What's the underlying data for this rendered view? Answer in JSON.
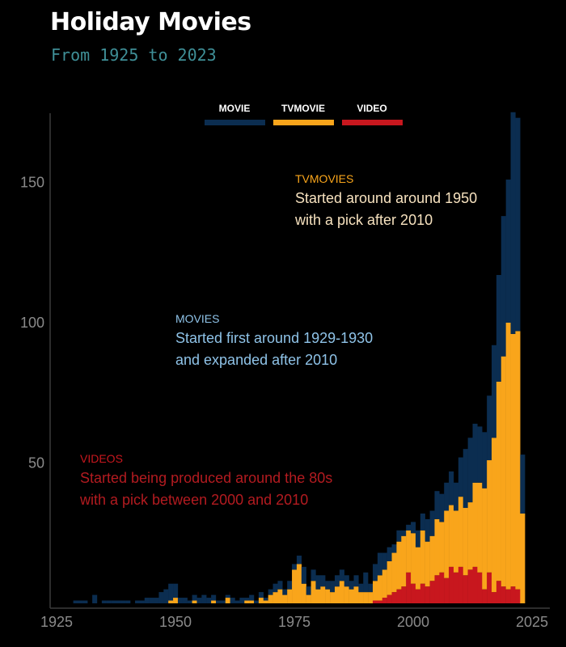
{
  "title": "Holiday Movies",
  "subtitle": "From 1925 to 2023",
  "chart_data": {
    "type": "bar",
    "stacked": true,
    "x_label": "",
    "y_label": "",
    "xlim": [
      1925,
      2025
    ],
    "ylim": [
      0,
      175
    ],
    "x_ticks": [
      1925,
      1950,
      1975,
      2000,
      2025
    ],
    "y_ticks": [
      50,
      100,
      150
    ],
    "legend_position": "top",
    "colors": {
      "movie": "#0b2d50",
      "tvmovie": "#f9a51b",
      "video": "#c8171e"
    },
    "series": [
      {
        "name": "MOVIE",
        "key": "movie"
      },
      {
        "name": "TVMOVIE",
        "key": "tvmovie"
      },
      {
        "name": "VIDEO",
        "key": "video"
      }
    ],
    "years": [
      1929,
      1930,
      1931,
      1933,
      1935,
      1936,
      1937,
      1938,
      1939,
      1940,
      1942,
      1943,
      1944,
      1945,
      1946,
      1947,
      1948,
      1949,
      1950,
      1951,
      1952,
      1953,
      1954,
      1955,
      1956,
      1957,
      1958,
      1959,
      1960,
      1961,
      1962,
      1963,
      1964,
      1965,
      1966,
      1967,
      1968,
      1969,
      1970,
      1971,
      1972,
      1973,
      1974,
      1975,
      1976,
      1977,
      1978,
      1979,
      1980,
      1981,
      1982,
      1983,
      1984,
      1985,
      1986,
      1987,
      1988,
      1989,
      1990,
      1991,
      1992,
      1993,
      1994,
      1995,
      1996,
      1997,
      1998,
      1999,
      2000,
      2001,
      2002,
      2003,
      2004,
      2005,
      2006,
      2007,
      2008,
      2009,
      2010,
      2011,
      2012,
      2013,
      2014,
      2015,
      2016,
      2017,
      2018,
      2019,
      2020,
      2021,
      2022,
      2023
    ],
    "video": [
      0,
      0,
      0,
      0,
      0,
      0,
      0,
      0,
      0,
      0,
      0,
      0,
      0,
      0,
      0,
      0,
      0,
      0,
      0,
      0,
      0,
      0,
      0,
      0,
      0,
      0,
      0,
      0,
      0,
      0,
      0,
      0,
      0,
      0,
      0,
      0,
      0,
      0,
      0,
      0,
      0,
      0,
      0,
      0,
      0,
      0,
      0,
      0,
      0,
      0,
      0,
      0,
      0,
      0,
      0,
      0,
      0,
      0,
      0,
      0,
      1,
      1,
      2,
      3,
      4,
      5,
      6,
      11,
      7,
      5,
      7,
      6,
      8,
      10,
      11,
      9,
      13,
      11,
      13,
      10,
      12,
      13,
      11,
      5,
      11,
      4,
      8,
      6,
      5,
      6,
      5,
      0
    ],
    "tvmovie": [
      0,
      0,
      0,
      0,
      0,
      0,
      0,
      0,
      0,
      0,
      0,
      0,
      0,
      0,
      0,
      0,
      0,
      1,
      2,
      0,
      0,
      0,
      1,
      0,
      0,
      0,
      1,
      0,
      0,
      2,
      0,
      0,
      0,
      1,
      1,
      0,
      2,
      1,
      3,
      4,
      5,
      3,
      5,
      12,
      14,
      7,
      3,
      8,
      5,
      6,
      5,
      4,
      6,
      8,
      6,
      5,
      6,
      4,
      4,
      4,
      7,
      9,
      10,
      12,
      14,
      17,
      18,
      15,
      18,
      15,
      19,
      16,
      16,
      20,
      18,
      24,
      22,
      22,
      25,
      24,
      24,
      30,
      32,
      36,
      40,
      55,
      71,
      82,
      95,
      90,
      92,
      32
    ],
    "movie": [
      1,
      1,
      1,
      3,
      1,
      1,
      1,
      1,
      1,
      1,
      1,
      1,
      2,
      2,
      2,
      4,
      5,
      6,
      5,
      2,
      2,
      1,
      2,
      2,
      3,
      2,
      2,
      1,
      1,
      1,
      2,
      1,
      2,
      1,
      2,
      1,
      2,
      1,
      2,
      3,
      3,
      2,
      3,
      2,
      3,
      6,
      3,
      4,
      5,
      4,
      3,
      4,
      4,
      4,
      4,
      3,
      4,
      3,
      7,
      3,
      6,
      8,
      6,
      5,
      3,
      4,
      2,
      2,
      4,
      6,
      6,
      8,
      9,
      10,
      10,
      10,
      12,
      10,
      14,
      21,
      23,
      21,
      20,
      20,
      23,
      33,
      38,
      50,
      51,
      79,
      76,
      21
    ]
  },
  "legend": [
    {
      "label": "MOVIE",
      "color": "#0b2d50"
    },
    {
      "label": "TVMOVIE",
      "color": "#f9a51b"
    },
    {
      "label": "VIDEO",
      "color": "#c8171e"
    }
  ],
  "annotations": {
    "tvmovies": {
      "head": "TVMOVIES",
      "line1": "Started around around 1950",
      "line2": "with a pick after 2010",
      "head_color": "#f9a51b",
      "body_color": "#f7e2bf"
    },
    "movies": {
      "head": "MOVIES",
      "line1": "Started first around 1929-1930",
      "line2": "and expanded after 2010",
      "head_color": "#8fc3e8",
      "body_color": "#8fc3e8"
    },
    "videos": {
      "head": "VIDEOS",
      "line1": "Started being produced around the 80s",
      "line2": "with a pick between 2000 and 2010",
      "head_color": "#c8171e",
      "body_color": "#b31b20"
    }
  }
}
